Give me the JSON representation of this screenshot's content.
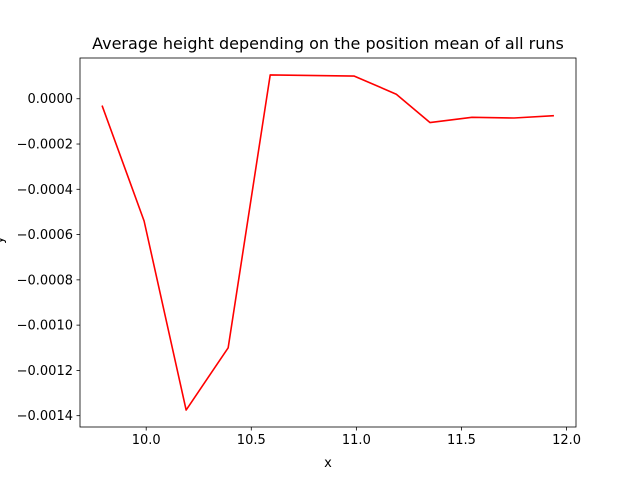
{
  "chart_data": {
    "type": "line",
    "title": "Average height depending on the position mean of all runs",
    "xlabel": "x",
    "ylabel": "y",
    "xlim": [
      9.685,
      12.045
    ],
    "ylim": [
      -0.00145,
      0.00018
    ],
    "xticks": [
      10.0,
      10.5,
      11.0,
      11.5,
      12.0
    ],
    "xtick_labels": [
      "10.0",
      "10.5",
      "11.0",
      "11.5",
      "12.0"
    ],
    "yticks": [
      0.0,
      -0.0002,
      -0.0004,
      -0.0006,
      -0.0008,
      -0.001,
      -0.0012,
      -0.0014
    ],
    "ytick_labels": [
      "0.0000",
      "−0.0002",
      "−0.0004",
      "−0.0006",
      "−0.0008",
      "−0.0010",
      "−0.0012",
      "−0.0014"
    ],
    "grid": false,
    "series": [
      {
        "color": "#ff0000",
        "x": [
          9.79,
          9.99,
          10.19,
          10.39,
          10.59,
          10.99,
          11.19,
          11.35,
          11.55,
          11.75,
          11.94
        ],
        "y": [
          -3e-05,
          -0.00054,
          -0.001375,
          -0.0011,
          0.000105,
          0.0001,
          2e-05,
          -0.000105,
          -8.2e-05,
          -8.5e-05,
          -7.5e-05
        ]
      }
    ]
  }
}
